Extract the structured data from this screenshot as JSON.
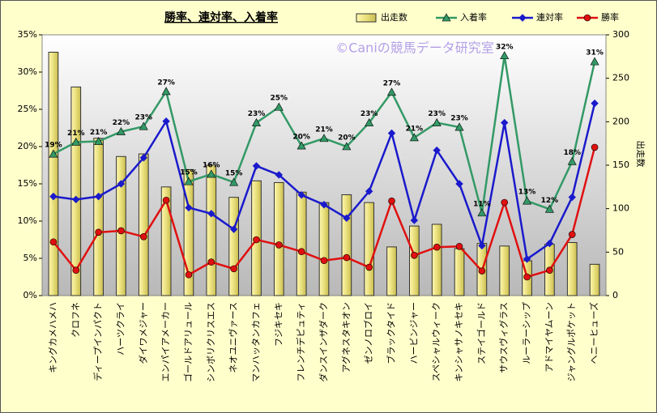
{
  "chart_data": {
    "type": "bar-line",
    "title": "勝率、連対率、入着率",
    "watermark": "©Caniの競馬データ研究室",
    "y2label": "出走数",
    "categories": [
      "キングカメハメハ",
      "クロフネ",
      "ディープインパクト",
      "ハーツクライ",
      "ダイワメジャー",
      "エンパイアメーカー",
      "ゴールドアリュール",
      "シンボリクリスエス",
      "ネオユニヴァース",
      "マンハッタンカフェ",
      "フジキセキ",
      "フレンチデピュティ",
      "ダンスインザダーク",
      "アグネスタキオン",
      "ゼンノロブロイ",
      "ブラックタイド",
      "ハービンジャー",
      "スペシャルウィーク",
      "キンシャサノキセキ",
      "ステイゴールド",
      "サウスヴィグラス",
      "ルーラーシップ",
      "アドマイヤムーン",
      "ジャングルポケット",
      "ヘニーヒューズ"
    ],
    "ylim": [
      0,
      35
    ],
    "yticks": [
      {
        "value": 0,
        "label": "0%"
      },
      {
        "value": 5,
        "label": "5%"
      },
      {
        "value": 10,
        "label": "10%"
      },
      {
        "value": 15,
        "label": "15%"
      },
      {
        "value": 20,
        "label": "20%"
      },
      {
        "value": 25,
        "label": "25%"
      },
      {
        "value": 30,
        "label": "30%"
      },
      {
        "value": 35,
        "label": "35%"
      }
    ],
    "y2lim": [
      0,
      300
    ],
    "y2ticks": [
      0,
      50,
      100,
      150,
      200,
      250,
      300
    ],
    "grid": false,
    "series": [
      {
        "name": "出走数",
        "kind": "bar",
        "axis": "y2",
        "color": "#eee58a",
        "values": [
          280,
          240,
          181,
          160,
          163,
          125,
          145,
          150,
          113,
          132,
          130,
          119,
          107,
          116,
          107,
          56,
          80,
          82,
          54,
          60,
          57,
          40,
          59,
          61,
          36
        ]
      },
      {
        "name": "入着率",
        "kind": "line",
        "color": "#339966",
        "marker": "triangle",
        "values": [
          19.0,
          20.6,
          20.7,
          22.0,
          22.7,
          27.4,
          15.3,
          16.3,
          15.2,
          23.2,
          25.3,
          20.1,
          21.1,
          20.0,
          23.2,
          27.3,
          21.2,
          23.2,
          22.6,
          11.1,
          32.2,
          12.7,
          11.6,
          18.0,
          31.4
        ],
        "value_labels": [
          "19%",
          "21%",
          "21%",
          "22%",
          "23%",
          "27%",
          "15%",
          "16%",
          "15%",
          "23%",
          "25%",
          "20%",
          "21%",
          "20%",
          "23%",
          "27%",
          "21%",
          "23%",
          "23%",
          "11%",
          "32%",
          "13%",
          "12%",
          "18%",
          "31%"
        ]
      },
      {
        "name": "連対率",
        "kind": "line",
        "color": "#1a1acc",
        "marker": "diamond",
        "values": [
          13.3,
          12.9,
          13.3,
          15.0,
          18.5,
          23.4,
          11.8,
          11.0,
          8.9,
          17.4,
          16.2,
          13.5,
          12.2,
          10.4,
          14.0,
          21.8,
          10.1,
          19.5,
          15.0,
          6.7,
          23.2,
          4.9,
          7.0,
          13.2,
          25.8
        ]
      },
      {
        "name": "勝率",
        "kind": "line",
        "color": "#e01010",
        "marker": "circle",
        "values": [
          7.2,
          3.4,
          8.5,
          8.7,
          7.9,
          12.8,
          2.8,
          4.5,
          3.6,
          7.5,
          6.8,
          5.9,
          4.7,
          5.1,
          3.8,
          12.7,
          5.4,
          6.5,
          6.6,
          3.3,
          12.5,
          2.5,
          3.4,
          8.2,
          19.9
        ]
      }
    ]
  }
}
